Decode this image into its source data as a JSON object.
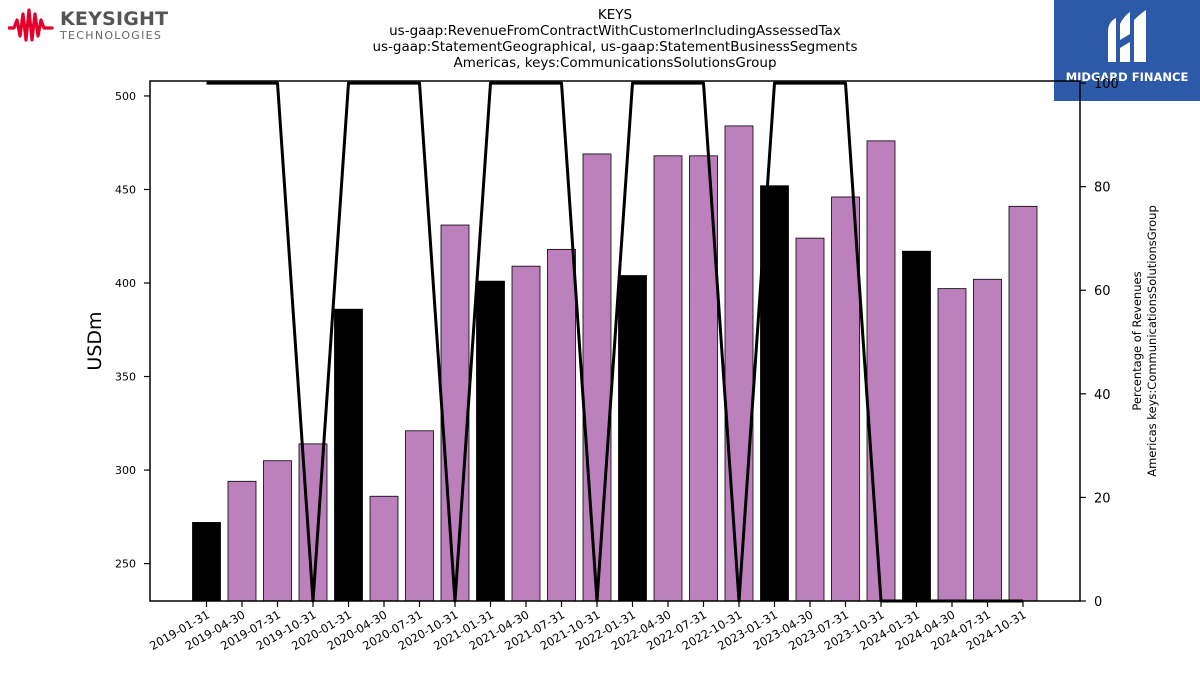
{
  "logos": {
    "left_name": "KEYSIGHT",
    "left_sub": "TECHNOLOGIES",
    "right_name": "MIDGARD FINANCE"
  },
  "chart_data": {
    "type": "bar",
    "title_lines": [
      "KEYS",
      "us-gaap:RevenueFromContractWithCustomerIncludingAssessedTax",
      "us-gaap:StatementGeographical, us-gaap:StatementBusinessSegments",
      "Americas, keys:CommunicationsSolutionsGroup"
    ],
    "ylabel": "USDm",
    "ylabel_right_lines": [
      "Percentage of Revenues",
      "Americas keys:CommunicationsSolutionsGroup"
    ],
    "ylim": [
      230,
      508
    ],
    "yticks": [
      250,
      300,
      350,
      400,
      450,
      500
    ],
    "ylim_right": [
      0,
      100.4
    ],
    "yticks_right": [
      0,
      20,
      40,
      60,
      80,
      100
    ],
    "categories": [
      "2019-01-31",
      "2019-04-30",
      "2019-07-31",
      "2019-10-31",
      "2020-01-31",
      "2020-04-30",
      "2020-07-31",
      "2020-10-31",
      "2021-01-31",
      "2021-04-30",
      "2021-07-31",
      "2021-10-31",
      "2022-01-31",
      "2022-04-30",
      "2022-07-31",
      "2022-10-31",
      "2023-01-31",
      "2023-04-30",
      "2023-07-31",
      "2023-10-31",
      "2024-01-31",
      "2024-04-30",
      "2024-07-31",
      "2024-10-31"
    ],
    "values": [
      272,
      294,
      305,
      314,
      386,
      286,
      321,
      431,
      401,
      409,
      418,
      469,
      404,
      468,
      468,
      484,
      452,
      424,
      446,
      476,
      417,
      397,
      402,
      441
    ],
    "bar_highlight": [
      true,
      false,
      false,
      false,
      true,
      false,
      false,
      false,
      true,
      false,
      false,
      false,
      true,
      false,
      false,
      false,
      true,
      false,
      false,
      false,
      true,
      false,
      false,
      false
    ],
    "percentage_line": [
      100,
      100,
      100,
      0,
      100,
      100,
      100,
      0,
      100,
      100,
      100,
      0,
      100,
      100,
      100,
      0,
      100,
      100,
      100,
      0,
      0,
      0,
      0,
      0
    ],
    "colors": {
      "bar": "#bc80bd",
      "bar_highlight": "#000000",
      "line": "#000000"
    },
    "grid": false,
    "legend": "none"
  }
}
